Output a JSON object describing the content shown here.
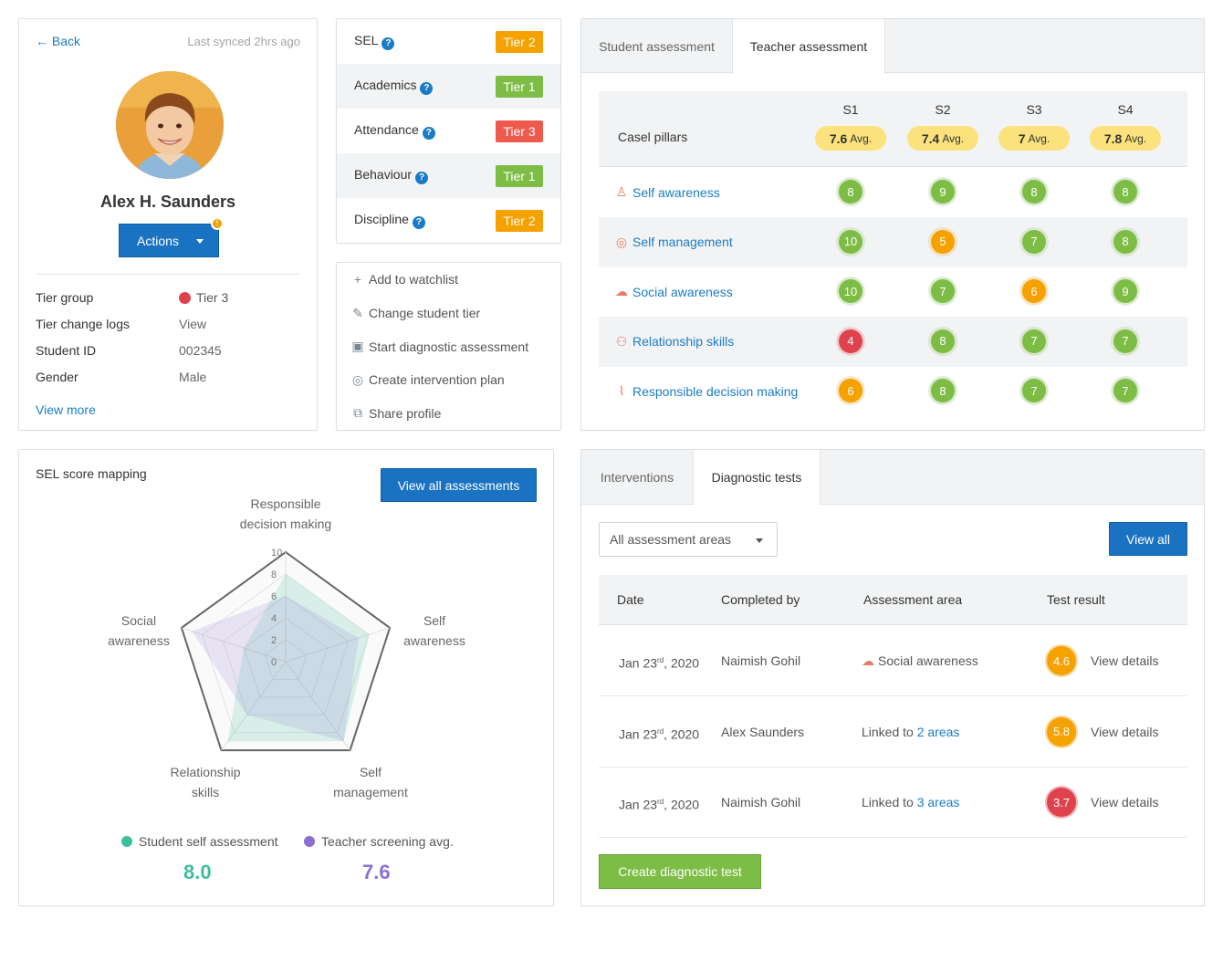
{
  "colors": {
    "accent": "#1a7cc7",
    "tier1": "#7dbd46",
    "tier2": "#f5a100",
    "tier3": "#ef5a4f",
    "score_green": "#7dbd46",
    "score_orange": "#f5a100",
    "score_red": "#e0424d",
    "avg_yellow": "#fbe27c",
    "student_series": "#3ebf9b",
    "teacher_series": "#8b6fd4"
  },
  "profile": {
    "back_label": "Back",
    "back_icon": "arrow-left-icon",
    "synced": "Last synced 2hrs ago",
    "name": "Alex H. Saunders",
    "actions_label": "Actions",
    "actions_alert": "!",
    "rows": [
      {
        "label": "Tier group",
        "value": "Tier 3"
      },
      {
        "label": "Tier change logs",
        "value": "View"
      },
      {
        "label": "Student ID",
        "value": "002345"
      },
      {
        "label": "Gender",
        "value": "Male"
      }
    ],
    "view_more": "View more"
  },
  "tiers": [
    {
      "label": "SEL",
      "tier": "Tier 2",
      "level": 2
    },
    {
      "label": "Academics",
      "tier": "Tier 1",
      "level": 1
    },
    {
      "label": "Attendance",
      "tier": "Tier 3",
      "level": 3
    },
    {
      "label": "Behaviour",
      "tier": "Tier 1",
      "level": 1
    },
    {
      "label": "Discipline",
      "tier": "Tier 2",
      "level": 2
    }
  ],
  "help_icon": "?",
  "menu": [
    {
      "label": "Add to watchlist",
      "icon": "plus-icon",
      "glyph": "+"
    },
    {
      "label": "Change student tier",
      "icon": "pencil-icon",
      "glyph": "✎"
    },
    {
      "label": "Start diagnostic assessment",
      "icon": "document-icon",
      "glyph": "▣"
    },
    {
      "label": "Create intervention plan",
      "icon": "chat-icon",
      "glyph": "◎"
    },
    {
      "label": "Share profile",
      "icon": "share-icon",
      "glyph": "⧉"
    }
  ],
  "assessment": {
    "tabs": [
      "Student assessment",
      "Teacher assessment"
    ],
    "active_tab": 1,
    "header_label": "Casel pillars",
    "columns": [
      {
        "label": "S1",
        "avg": "7.6",
        "avg_suffix": "Avg."
      },
      {
        "label": "S2",
        "avg": "7.4",
        "avg_suffix": "Avg."
      },
      {
        "label": "S3",
        "avg": "7",
        "avg_suffix": "Avg."
      },
      {
        "label": "S4",
        "avg": "7.8",
        "avg_suffix": "Avg."
      }
    ],
    "pillars": [
      {
        "label": "Self awareness",
        "icon": "person-icon",
        "glyph": "♙",
        "scores": [
          8,
          9,
          8,
          8
        ]
      },
      {
        "label": "Self management",
        "icon": "target-icon",
        "glyph": "◎",
        "scores": [
          10,
          5,
          7,
          8
        ]
      },
      {
        "label": "Social awareness",
        "icon": "chat-icon",
        "glyph": "☁",
        "scores": [
          10,
          7,
          6,
          9
        ]
      },
      {
        "label": "Relationship skills",
        "icon": "relationship-icon",
        "glyph": "⚇",
        "scores": [
          4,
          8,
          7,
          7
        ]
      },
      {
        "label": "Responsible decision making",
        "icon": "chart-icon",
        "glyph": "⌇",
        "scores": [
          6,
          8,
          7,
          7
        ]
      }
    ]
  },
  "radar": {
    "title": "SEL score mapping",
    "button": "View all assessments",
    "axes": [
      {
        "line1": "Responsible",
        "line2": "decision making"
      },
      {
        "line1": "Self",
        "line2": "awareness"
      },
      {
        "line1": "Self",
        "line2": "management"
      },
      {
        "line1": "Relationship",
        "line2": "skills"
      },
      {
        "line1": "Social",
        "line2": "awareness"
      }
    ],
    "ticks": [
      "0",
      "2",
      "4",
      "6",
      "8",
      "10"
    ],
    "legend": [
      {
        "label": "Student self assessment",
        "value": "8.0"
      },
      {
        "label": "Teacher screening avg.",
        "value": "7.6"
      }
    ]
  },
  "chart_data": {
    "type": "radar",
    "categories": [
      "Responsible decision making",
      "Self awareness",
      "Self management",
      "Relationship skills",
      "Social awareness"
    ],
    "rlim": [
      0,
      10
    ],
    "ticks": [
      0,
      2,
      4,
      6,
      8,
      10
    ],
    "series": [
      {
        "name": "Student self assessment",
        "values": [
          8,
          8,
          9,
          9,
          4
        ]
      },
      {
        "name": "Teacher screening avg.",
        "values": [
          6,
          7,
          9,
          6,
          9
        ]
      }
    ],
    "legend_position": "bottom"
  },
  "diagnostics": {
    "tabs": [
      "Interventions",
      "Diagnostic tests"
    ],
    "active_tab": 1,
    "filter": "All assessment areas",
    "view_all": "View all",
    "columns": [
      "Date",
      "Completed by",
      "Assessment area",
      "Test result"
    ],
    "rows": [
      {
        "date": "Jan 23",
        "sup": "rd",
        "year": ", 2020",
        "by": "Naimish Gohil",
        "area_prefix": "",
        "area_link": "",
        "area_text": "Social awareness",
        "area_icon": "chat-icon",
        "result": "4.6",
        "result_color": "#f5a100",
        "link": "View details"
      },
      {
        "date": "Jan 23",
        "sup": "rd",
        "year": ", 2020",
        "by": "Alex Saunders",
        "area_prefix": "Linked to ",
        "area_link": "2 areas",
        "area_text": "",
        "area_icon": "",
        "result": "5.8",
        "result_color": "#f5a100",
        "link": "View details"
      },
      {
        "date": "Jan 23",
        "sup": "rd",
        "year": ", 2020",
        "by": "Naimish Gohil",
        "area_prefix": "Linked to ",
        "area_link": "3 areas",
        "area_text": "",
        "area_icon": "",
        "result": "3.7",
        "result_color": "#e0424d",
        "link": "View details"
      }
    ],
    "create_button": "Create diagnostic test"
  }
}
